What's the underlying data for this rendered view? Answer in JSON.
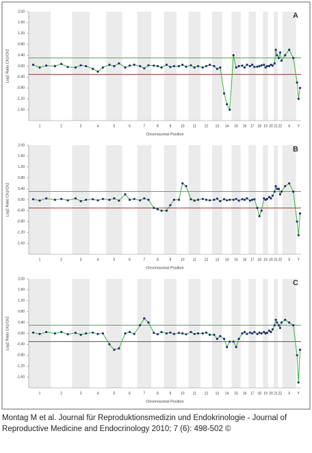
{
  "chart_data": [
    {
      "type": "scatter",
      "title": "A",
      "ylabel": "Log2 Ratio Ch1/Ch2",
      "xlabel": "Chromosomal Position",
      "categories": [
        "1",
        "2",
        "3",
        "4",
        "5",
        "6",
        "7",
        "8",
        "9",
        "10",
        "11",
        "12",
        "13",
        "14",
        "15",
        "16",
        "17",
        "18",
        "19",
        "20",
        "21",
        "22",
        "X",
        "Y"
      ],
      "xlim": [
        0,
        24
      ],
      "ylim": [
        -2,
        2
      ],
      "yticks": [
        {
          "value": 2,
          "label": "2.00"
        },
        {
          "value": 1.6,
          "label": "1.60"
        },
        {
          "value": 1.2,
          "label": "1.20"
        },
        {
          "value": 0.8,
          "label": "0.80"
        },
        {
          "value": 0.4,
          "label": "0.40"
        },
        {
          "value": 0,
          "label": "0.00"
        },
        {
          "value": -0.4,
          "label": "-0.40"
        },
        {
          "value": -0.8,
          "label": "-0.80"
        },
        {
          "value": -1.2,
          "label": "-1.20"
        },
        {
          "value": -1.6,
          "label": "-1.60"
        }
      ],
      "reference_lines": [
        {
          "value": 0.3,
          "color": "#3aa03a"
        },
        {
          "value": -0.3,
          "color": "#8b2020"
        }
      ],
      "point_color": "#1f2f7a",
      "line_color": "#2db82d",
      "x": [
        0.2,
        0.5,
        0.8,
        1.2,
        1.5,
        1.8,
        2.2,
        2.5,
        2.8,
        3.2,
        3.5,
        3.8,
        4.2,
        4.5,
        4.8,
        5.2,
        5.5,
        5.8,
        6.2,
        6.5,
        6.8,
        7.2,
        7.5,
        7.8,
        8.2,
        8.5,
        8.8,
        9.2,
        9.5,
        9.8,
        10.2,
        10.5,
        10.8,
        11.2,
        11.5,
        11.8,
        12.2,
        12.5,
        12.8,
        13.2,
        13.5,
        13.8,
        14.2,
        14.5,
        14.8,
        15.2,
        15.5,
        15.8,
        16.2,
        16.5,
        16.8,
        17.2,
        17.5,
        17.8,
        18.2,
        18.5,
        18.8,
        19.2,
        19.5,
        19.8,
        20.2,
        20.5,
        20.8,
        21.2,
        21.5,
        21.8,
        22.2,
        22.5,
        22.8,
        23.2,
        23.5,
        23.8
      ],
      "values": [
        0.05,
        -0.05,
        0.02,
        0,
        0.08,
        -0.03,
        -0.05,
        0.03,
        0,
        -0.1,
        -0.2,
        -0.05,
        0.05,
        0,
        0.1,
        -0.05,
        0.02,
        0.05,
        0,
        -0.08,
        0.03,
        0.02,
        0,
        -0.05,
        0.05,
        -0.03,
        0,
        0,
        0.05,
        -0.02,
        0.03,
        -0.05,
        0,
        -0.05,
        0,
        0.05,
        0,
        -0.1,
        -0.05,
        -1.0,
        -1.4,
        -1.6,
        0.4,
        -0.05,
        0,
        0.02,
        -0.05,
        0.05,
        0,
        0.05,
        -0.03,
        -0.02,
        0,
        0.03,
        0.05,
        -0.05,
        0,
        0,
        0.05,
        0.02,
        0.1,
        0.6,
        0.4,
        0.3,
        0.5,
        0.2,
        0.4,
        0.6,
        0.3,
        -0.6,
        -1.2,
        -0.8
      ]
    },
    {
      "type": "scatter",
      "title": "B",
      "ylabel": "Log2 Ratio Ch1/Ch2",
      "xlabel": "Chromosomal Position",
      "categories": [
        "1",
        "2",
        "3",
        "4",
        "5",
        "6",
        "7",
        "8",
        "9",
        "10",
        "11",
        "12",
        "13",
        "14",
        "15",
        "16",
        "17",
        "18",
        "19",
        "20",
        "21",
        "22",
        "X",
        "Y"
      ],
      "xlim": [
        0,
        24
      ],
      "ylim": [
        -2,
        2
      ],
      "yticks": [
        {
          "value": 2,
          "label": "2.00"
        },
        {
          "value": 1.6,
          "label": "1.60"
        },
        {
          "value": 1.2,
          "label": "1.20"
        },
        {
          "value": 0.8,
          "label": "0.80"
        },
        {
          "value": 0.4,
          "label": "0.40"
        },
        {
          "value": 0,
          "label": "0.00"
        },
        {
          "value": -0.4,
          "label": "-0.40"
        },
        {
          "value": -0.8,
          "label": "-0.80"
        },
        {
          "value": -1.2,
          "label": "-1.20"
        },
        {
          "value": -1.6,
          "label": "-1.60"
        }
      ],
      "reference_lines": [
        {
          "value": 0.3,
          "color": "#3aa03a"
        },
        {
          "value": -0.3,
          "color": "#8b2020"
        }
      ],
      "point_color": "#1f2f7a",
      "line_color": "#2db82d",
      "x": [
        0.2,
        0.5,
        0.8,
        1.2,
        1.5,
        1.8,
        2.2,
        2.5,
        2.8,
        3.2,
        3.5,
        3.8,
        4.2,
        4.5,
        4.8,
        5.2,
        5.5,
        5.8,
        6.2,
        6.5,
        6.8,
        7.2,
        7.5,
        7.8,
        8.2,
        8.5,
        8.8,
        9.2,
        9.5,
        9.8,
        10.2,
        10.5,
        10.8,
        11.2,
        11.5,
        11.8,
        12.2,
        12.5,
        12.8,
        13.2,
        13.5,
        13.8,
        14.2,
        14.5,
        14.8,
        15.2,
        15.5,
        15.8,
        16.2,
        16.5,
        16.8,
        17.2,
        17.5,
        17.8,
        18.2,
        18.5,
        18.8,
        19.2,
        19.5,
        19.8,
        20.2,
        20.5,
        20.8,
        21.2,
        21.5,
        21.8,
        22.2,
        22.5,
        22.8,
        23.2,
        23.5,
        23.8
      ],
      "values": [
        0.02,
        -0.03,
        0.05,
        0,
        0.03,
        -0.02,
        0.05,
        -0.05,
        0,
        0.02,
        -0.02,
        0.03,
        0,
        0.05,
        -0.03,
        0.2,
        0,
        0.03,
        -0.02,
        0.05,
        0,
        -0.3,
        -0.35,
        -0.4,
        -0.4,
        -0.2,
        0,
        0,
        0.6,
        0.5,
        0.02,
        -0.03,
        0,
        0.03,
        0,
        -0.02,
        0,
        0.04,
        -0.05,
        0.02,
        -0.02,
        0,
        0,
        0.03,
        -0.03,
        0.02,
        0,
        0.05,
        -0.03,
        0,
        0.02,
        -0.3,
        -0.6,
        -0.4,
        0.05,
        0,
        0.03,
        0.1,
        0.05,
        0.15,
        0.3,
        0.5,
        0.4,
        0.4,
        0.2,
        0.3,
        0.5,
        0.6,
        0.3,
        -0.8,
        -1.3,
        -0.5
      ]
    },
    {
      "type": "scatter",
      "title": "C",
      "ylabel": "Log2 Ratio Ch1/Ch2",
      "xlabel": "Chromosomal Position",
      "categories": [
        "1",
        "2",
        "3",
        "4",
        "5",
        "6",
        "7",
        "8",
        "9",
        "10",
        "11",
        "12",
        "13",
        "14",
        "15",
        "16",
        "17",
        "18",
        "19",
        "20",
        "21",
        "22",
        "X",
        "Y"
      ],
      "xlim": [
        0,
        24
      ],
      "ylim": [
        -2,
        2
      ],
      "yticks": [
        {
          "value": 2,
          "label": "2.00"
        },
        {
          "value": 1.6,
          "label": "1.60"
        },
        {
          "value": 1.2,
          "label": "1.20"
        },
        {
          "value": 0.8,
          "label": "0.80"
        },
        {
          "value": 0.4,
          "label": "0.40"
        },
        {
          "value": 0,
          "label": "0.00"
        },
        {
          "value": -0.4,
          "label": "-0.40"
        },
        {
          "value": -0.8,
          "label": "-0.80"
        },
        {
          "value": -1.2,
          "label": "-1.20"
        },
        {
          "value": -1.6,
          "label": "-1.60"
        }
      ],
      "reference_lines": [
        {
          "value": 0.3,
          "color": "#3aa03a"
        },
        {
          "value": -0.3,
          "color": "#8b2020"
        }
      ],
      "point_color": "#1f2f7a",
      "line_color": "#2db82d",
      "x": [
        0.2,
        0.5,
        0.8,
        1.2,
        1.5,
        1.8,
        2.2,
        2.5,
        2.8,
        3.2,
        3.5,
        3.8,
        4.2,
        4.5,
        4.8,
        5.2,
        5.5,
        5.8,
        6.2,
        6.5,
        6.8,
        7.2,
        7.5,
        7.8,
        8.2,
        8.5,
        8.8,
        9.2,
        9.5,
        9.8,
        10.2,
        10.5,
        10.8,
        11.2,
        11.5,
        11.8,
        12.2,
        12.5,
        12.8,
        13.2,
        13.5,
        13.8,
        14.2,
        14.5,
        14.8,
        15.2,
        15.5,
        15.8,
        16.2,
        16.5,
        16.8,
        17.2,
        17.5,
        17.8,
        18.2,
        18.5,
        18.8,
        19.2,
        19.5,
        19.8,
        20.2,
        20.5,
        20.8,
        21.2,
        21.5,
        21.8,
        22.2,
        22.5,
        22.8,
        23.2,
        23.5,
        23.8
      ],
      "values": [
        0.03,
        -0.02,
        0.05,
        0,
        0.05,
        -0.03,
        0.02,
        -0.05,
        0,
        0.03,
        -0.02,
        0,
        -0.4,
        -0.6,
        -0.55,
        0,
        0.05,
        -0.02,
        0.3,
        0.55,
        0.4,
        0.02,
        -0.03,
        0.05,
        0,
        0.03,
        -0.02,
        0.02,
        0,
        -0.03,
        0.05,
        -0.02,
        0,
        0,
        0.03,
        -0.05,
        -0.05,
        -0.2,
        -0.1,
        -0.2,
        -0.5,
        -0.3,
        -0.3,
        -0.5,
        -0.2,
        0,
        0.05,
        -0.02,
        0.03,
        0,
        0.05,
        -0.02,
        0.03,
        0,
        0.05,
        0,
        0.02,
        0.1,
        0.05,
        0.15,
        0.3,
        0.5,
        0.4,
        0.3,
        0.2,
        0.4,
        0.5,
        0.4,
        0.3,
        -0.8,
        -1.8,
        -0.6
      ]
    }
  ],
  "caption": [
    "Montag M et al. Journal für Reproduktionsmedizin und Endokrinologie - Journal of",
    "Reproductive Medicine and Endocrinology 2010; 7 (6): 498-502 ©"
  ]
}
